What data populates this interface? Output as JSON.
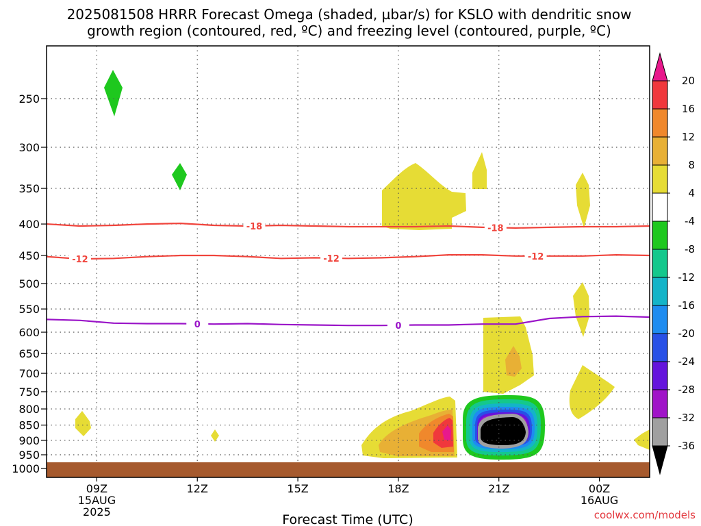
{
  "title_lines": [
    "2025081508 HRRR Forecast Omega (shaded, µbar/s) for KSLO with dendritic snow",
    "growth region (contoured, red, ºC) and freezing level (contoured, purple, ºC)"
  ],
  "credit": "coolwx.com/models",
  "chart_data": {
    "type": "heatmap",
    "title": "2025081508 HRRR Forecast Omega (shaded, µbar/s) for KSLO with dendritic snow growth region (contoured, red, ºC) and freezing level (contoured, purple, ºC)",
    "xlabel": "Forecast Time (UTC)",
    "ylabel": "",
    "x_range_hours": [
      7.5,
      25.5
    ],
    "y_range_hpa": [
      1000,
      200
    ],
    "y_scale": "log-pressure",
    "grid": true,
    "x_ticks": [
      {
        "hour": 9,
        "label": "09Z",
        "sub": [
          "15AUG",
          "2025"
        ]
      },
      {
        "hour": 12,
        "label": "12Z",
        "sub": []
      },
      {
        "hour": 15,
        "label": "15Z",
        "sub": []
      },
      {
        "hour": 18,
        "label": "18Z",
        "sub": []
      },
      {
        "hour": 21,
        "label": "21Z",
        "sub": []
      },
      {
        "hour": 24,
        "label": "00Z",
        "sub": [
          "16AUG"
        ]
      }
    ],
    "y_ticks": [
      250,
      300,
      350,
      400,
      450,
      500,
      550,
      600,
      650,
      700,
      750,
      800,
      850,
      900,
      950,
      1000
    ],
    "colorbar": {
      "labels": [
        "20",
        "16",
        "12",
        "8",
        "4",
        "-4",
        "-8",
        "-12",
        "-16",
        "-20",
        "-24",
        "-28",
        "-32",
        "-36"
      ],
      "colors": [
        "#e8188c",
        "#f0383c",
        "#f0882c",
        "#e8b035",
        "#e6dc35",
        "#ffffff",
        "#1ec81e",
        "#14c88c",
        "#14b4c8",
        "#1e8cf0",
        "#2850e6",
        "#6414dc",
        "#a014c8",
        "#a0a0a0",
        "#000000"
      ]
    },
    "series": [
      {
        "name": "-18",
        "color": "#f0443c",
        "kind": "temperature contour",
        "x": [
          7.5,
          8.5,
          9.5,
          10.5,
          11.5,
          12.5,
          13.5,
          14.5,
          15.5,
          16.5,
          17.5,
          18.5,
          19.5,
          20.5,
          21.5,
          22.5,
          23.5,
          24.5,
          25.5
        ],
        "y": [
          400,
          403,
          402,
          400,
          399,
          402,
          403,
          402,
          403,
          404,
          404,
          404,
          403,
          405,
          406,
          405,
          404,
          404,
          403
        ],
        "label_hours": [
          13.7,
          20.9
        ]
      },
      {
        "name": "-12",
        "color": "#f0443c",
        "kind": "temperature contour",
        "x": [
          7.5,
          8.5,
          9.5,
          10.5,
          11.5,
          12.5,
          13.5,
          14.5,
          15.5,
          16.5,
          17.5,
          18.5,
          19.5,
          20.5,
          21.5,
          22.5,
          23.5,
          24.5,
          25.5
        ],
        "y": [
          452,
          456,
          455,
          452,
          450,
          450,
          452,
          455,
          454,
          455,
          454,
          452,
          449,
          449,
          451,
          451,
          451,
          449,
          450
        ],
        "label_hours": [
          8.5,
          16.0,
          22.1
        ]
      },
      {
        "name": "0",
        "color": "#9a14c8",
        "kind": "freezing level",
        "x": [
          7.5,
          8.5,
          9.5,
          10.5,
          11.5,
          12.5,
          13.5,
          14.5,
          15.5,
          16.5,
          17.5,
          18.5,
          19.5,
          20.5,
          21.5,
          22.5,
          23.5,
          24.5,
          25.5
        ],
        "y": [
          572,
          574,
          580,
          581,
          581,
          582,
          581,
          583,
          584,
          585,
          585,
          584,
          584,
          582,
          582,
          570,
          566,
          565,
          567
        ],
        "label_hours": [
          12.0,
          18.0
        ]
      }
    ],
    "regions": [
      {
        "value": "-8 to -4",
        "center_hour": 10.0,
        "center_hpa": 240
      },
      {
        "value": "-8 to -4",
        "center_hour": 12.0,
        "center_hpa": 335
      },
      {
        "value": "4 to 8",
        "center_hour": 19.5,
        "center_hpa": 370
      },
      {
        "value": "4 to 8",
        "center_hour": 24.0,
        "center_hpa": 370
      },
      {
        "value": "4 to 8",
        "center_hour": 21.5,
        "center_hpa": 640
      },
      {
        "value": "8 to 12",
        "center_hour": 21.9,
        "center_hpa": 690
      },
      {
        "value": "4 to 8",
        "center_hour": 24.0,
        "center_hpa": 780
      },
      {
        "value": "20+",
        "center_hour": 20.0,
        "center_hpa": 890
      },
      {
        "value": "below -36",
        "center_hour": 21.9,
        "center_hpa": 890
      }
    ]
  }
}
